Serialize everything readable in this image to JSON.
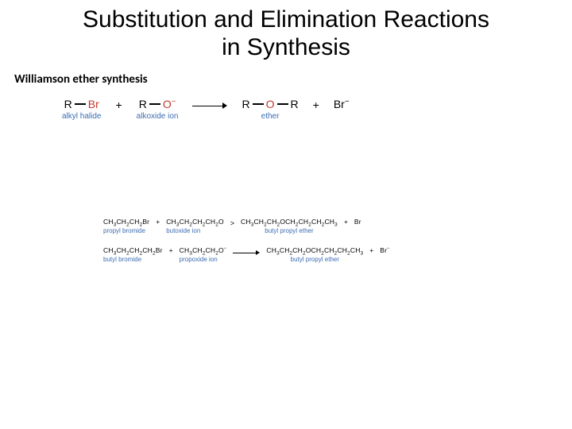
{
  "title_line1": "Substitution and Elimination Reactions",
  "title_line2": "in Synthesis",
  "subheading": "Williamson ether synthesis",
  "colors": {
    "blue": "#3b6cb3",
    "red": "#c33a2b",
    "black": "#000000",
    "background": "#ffffff"
  },
  "generic": {
    "reactant1": {
      "left": "R",
      "right": "Br",
      "right_color": "red",
      "label": "alkyl halide",
      "label_color": "blue"
    },
    "plus1": "+",
    "reactant2": {
      "left": "R",
      "right": "O",
      "sup": "−",
      "right_color": "red",
      "label": "alkoxide ion",
      "label_color": "blue"
    },
    "product1": {
      "seq": "R—O—R",
      "mid_color": "red",
      "label": "ether",
      "label_color": "blue"
    },
    "plus2": "+",
    "byproduct": "Br",
    "byproduct_sup": "−"
  },
  "specific": {
    "row1": {
      "r1_formula_parts": [
        "CH",
        "3",
        "CH",
        "2",
        "CH",
        "2",
        "Br"
      ],
      "r1_label": "propyl bromide",
      "r1_label_color": "blue",
      "r2_formula_parts": [
        "CH",
        "3",
        "CH",
        "2",
        "CH",
        "2",
        "CH",
        "2",
        "O"
      ],
      "r2_label": "butoxide ion",
      "r2_label_color": "blue",
      "sep": ">",
      "p_formula_parts": [
        "CH",
        "3",
        "CH",
        "2",
        "CH",
        "2",
        "OCH",
        "2",
        "CH",
        "2",
        "CH",
        "2",
        "CH",
        "3"
      ],
      "p_label": "butyl propyl ether",
      "p_label_color": "blue",
      "by": "Br"
    },
    "row2": {
      "r1_formula_parts": [
        "CH",
        "3",
        "CH",
        "2",
        "CH",
        "2",
        "CH",
        "2",
        "Br"
      ],
      "r1_label": "butyl bromide",
      "r1_label_color": "blue",
      "r2_formula_parts": [
        "CH",
        "3",
        "CH",
        "2",
        "CH",
        "2",
        "O"
      ],
      "r2_sup": "−",
      "r2_label": "propoxide ion",
      "r2_label_color": "blue",
      "p_formula_parts": [
        "CH",
        "3",
        "CH",
        "2",
        "CH",
        "2",
        "OCH",
        "2",
        "CH",
        "2",
        "CH",
        "2",
        "CH",
        "3"
      ],
      "p_label": "butyl propyl ether",
      "p_label_color": "blue",
      "by": "Br",
      "by_sup": "−"
    },
    "plus": "+"
  }
}
